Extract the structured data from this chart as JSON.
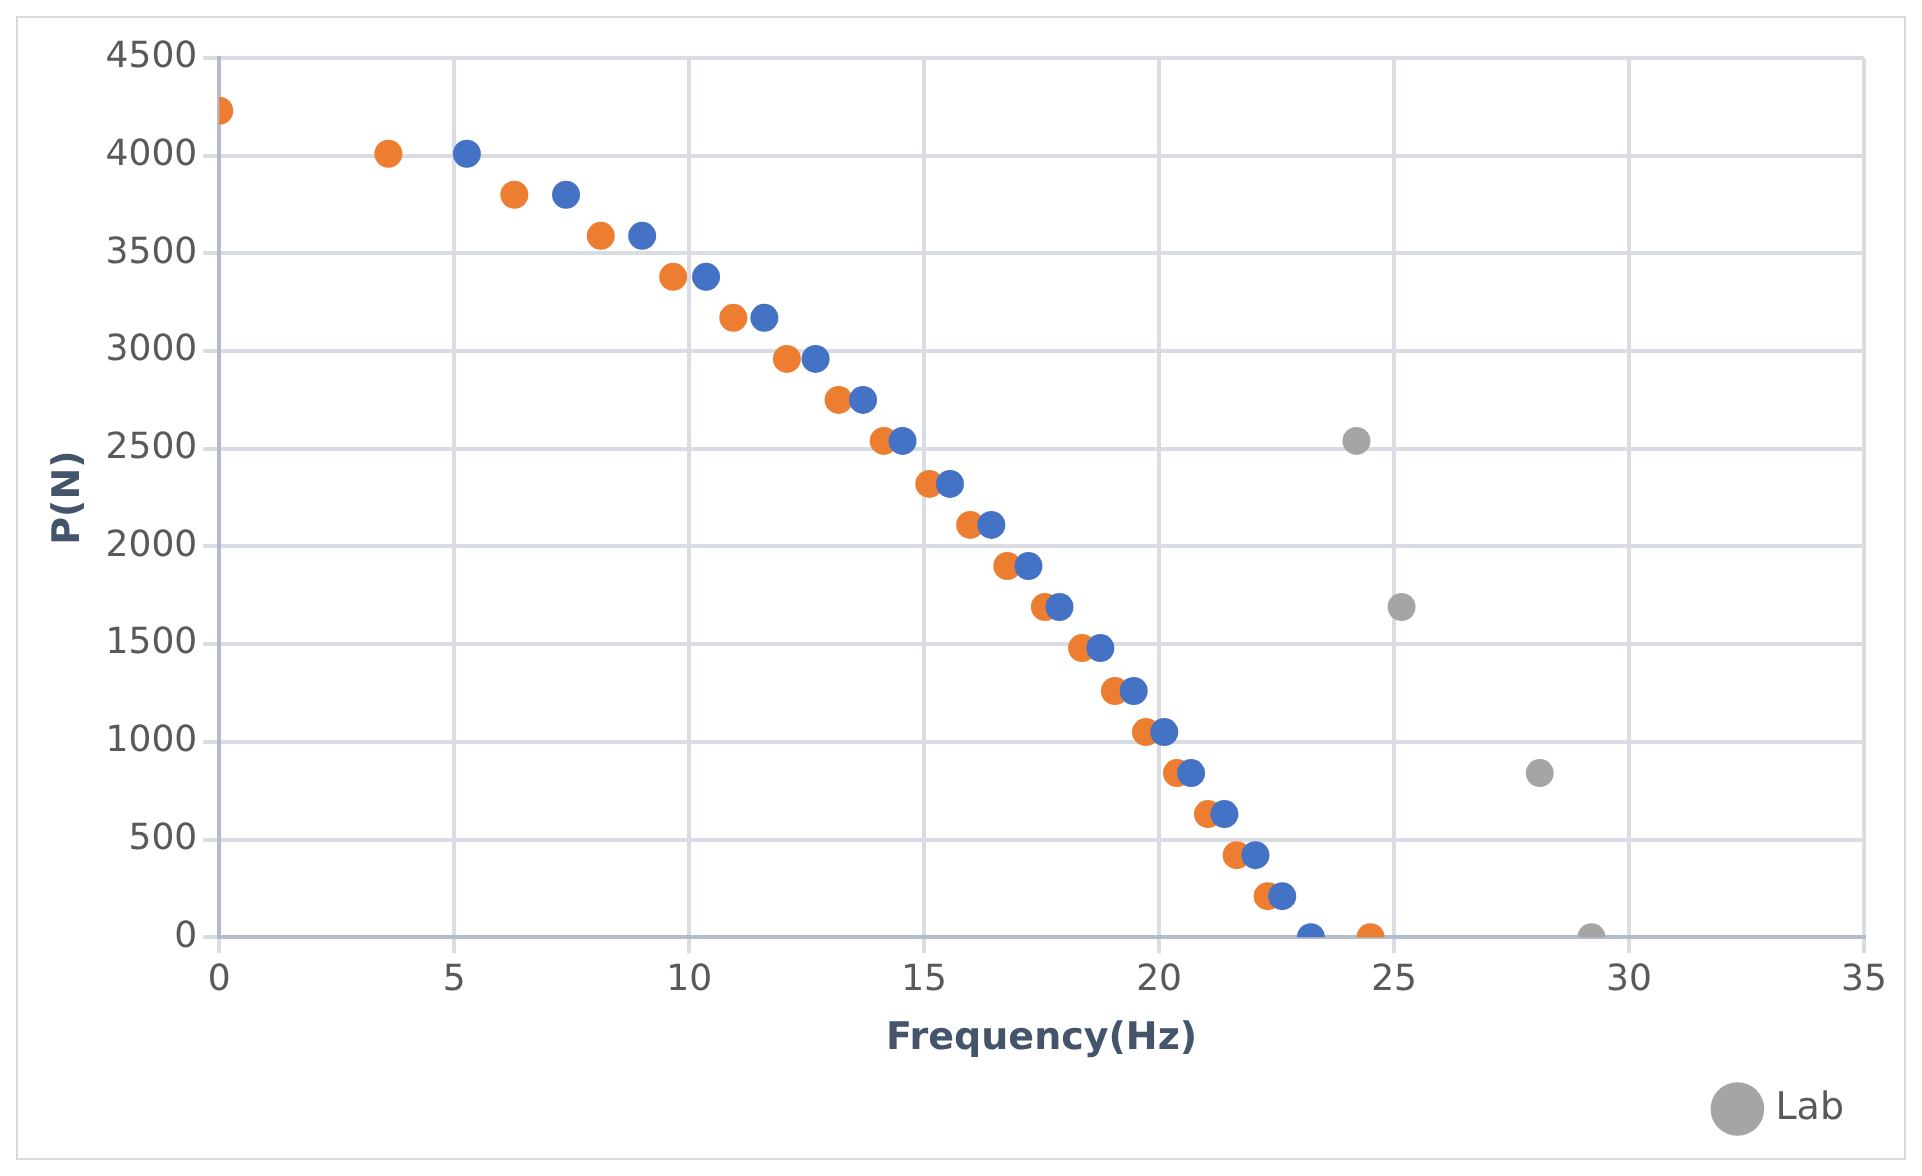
{
  "chart_data": {
    "type": "scatter",
    "xlabel": "Frequency(Hz)",
    "ylabel": "P(N)",
    "xlim": [
      0,
      35
    ],
    "xticks": [
      0,
      5,
      10,
      15,
      20,
      25,
      30,
      35
    ],
    "ylim": [
      0,
      4500
    ],
    "yticks": [
      0,
      500,
      1000,
      1500,
      2000,
      2500,
      3000,
      3500,
      4000,
      4500
    ],
    "grid": true,
    "legend": "bottom",
    "marker": "circle",
    "series": [
      {
        "color": "#4472c4",
        "x": [
          5.27,
          7.38,
          9.0,
          10.36,
          11.6,
          12.69,
          13.7,
          14.54,
          15.55,
          16.43,
          17.22,
          17.88,
          18.75,
          19.46,
          20.11,
          20.68,
          21.39,
          22.05,
          22.62,
          23.23
        ],
        "values": [
          4010,
          3800,
          3590,
          3380,
          3170,
          2960,
          2750,
          2540,
          2320,
          2110,
          1900,
          1690,
          1480,
          1260,
          1050,
          840,
          630,
          420,
          210,
          0
        ]
      },
      {
        "color": "#ed7d31",
        "x": [
          0,
          3.6,
          6.28,
          8.12,
          9.66,
          10.94,
          12.08,
          13.18,
          14.14,
          15.11,
          15.98,
          16.77,
          17.57,
          18.36,
          19.06,
          19.72,
          20.38,
          21.04,
          21.65,
          22.31,
          24.5
        ],
        "values": [
          4230,
          4010,
          3800,
          3590,
          3380,
          3170,
          2960,
          2750,
          2540,
          2320,
          2110,
          1900,
          1690,
          1480,
          1260,
          1050,
          840,
          630,
          420,
          210,
          0
        ]
      },
      {
        "name": "Lab",
        "color": "#a5a5a5",
        "x": [
          24.2,
          25.16,
          28.1,
          29.2
        ],
        "values": [
          2540,
          1690,
          840,
          0
        ]
      }
    ]
  }
}
